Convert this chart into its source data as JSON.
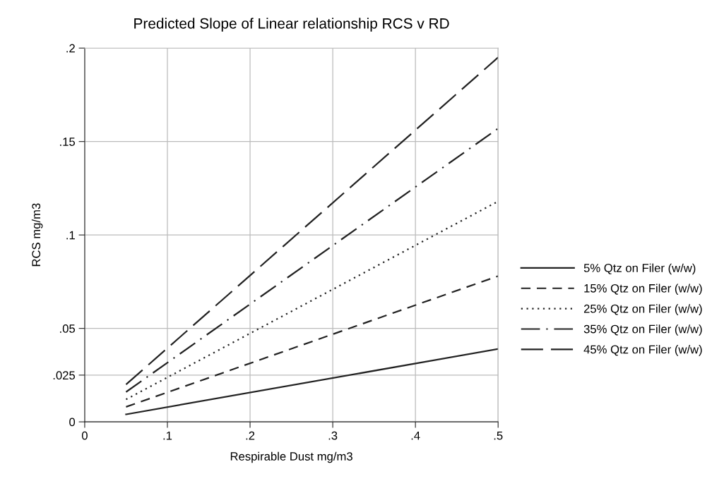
{
  "chart_data": {
    "type": "line",
    "title": "Predicted Slope of Linear relationship RCS v RD",
    "xlabel": "Respirable Dust mg/m3",
    "ylabel": "RCS mg/m3",
    "x": [
      0.05,
      0.5
    ],
    "series": [
      {
        "name": "5% Qtz on Filer (w/w)",
        "color": "#222222",
        "line_style": "solid",
        "values": [
          0.004,
          0.039
        ]
      },
      {
        "name": "15% Qtz on Filer (w/w)",
        "color": "#222222",
        "line_style": "dashed",
        "values": [
          0.008,
          0.078
        ]
      },
      {
        "name": "25% Qtz on Filer (w/w)",
        "color": "#222222",
        "line_style": "dotted",
        "values": [
          0.012,
          0.118
        ]
      },
      {
        "name": "35% Qtz on Filer (w/w)",
        "color": "#222222",
        "line_style": "dashdot",
        "values": [
          0.016,
          0.157
        ]
      },
      {
        "name": "45% Qtz on Filer (w/w)",
        "color": "#222222",
        "line_style": "longdash",
        "values": [
          0.02,
          0.195
        ]
      }
    ],
    "xlim": [
      0,
      0.5
    ],
    "xticks": [
      0,
      {
        "value": 0.1,
        "label": ".1"
      },
      {
        "value": 0.2,
        "label": ".2"
      },
      {
        "value": 0.3,
        "label": ".3"
      },
      {
        "value": 0.4,
        "label": ".4"
      },
      {
        "value": 0.5,
        "label": ".5"
      }
    ],
    "ylim": [
      0,
      0.2
    ],
    "yticks": [
      0,
      {
        "value": 0.025,
        "label": ".025"
      },
      {
        "value": 0.05,
        "label": ".05"
      },
      {
        "value": 0.1,
        "label": ".1"
      },
      {
        "value": 0.15,
        "label": ".15"
      },
      {
        "value": 0.2,
        "label": ".2"
      }
    ],
    "grid": true,
    "legend": "right",
    "marker": "none"
  }
}
